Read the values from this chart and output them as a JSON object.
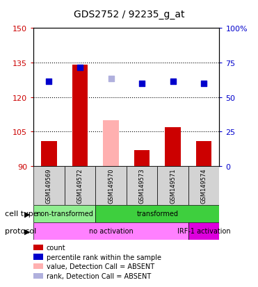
{
  "title": "GDS2752 / 92235_g_at",
  "samples": [
    "GSM149569",
    "GSM149572",
    "GSM149570",
    "GSM149573",
    "GSM149571",
    "GSM149574"
  ],
  "bar_values": [
    101,
    134,
    null,
    97,
    107,
    101
  ],
  "absent_bar_values": [
    null,
    null,
    110,
    null,
    null,
    null
  ],
  "absent_bar_color": "#ffb0b0",
  "dot_values": [
    127,
    133,
    null,
    126,
    127,
    126
  ],
  "absent_dot_values": [
    null,
    null,
    128,
    null,
    null,
    null
  ],
  "dot_color": "#0000cc",
  "absent_dot_color": "#b0b0dd",
  "bar_color": "#cc0000",
  "ylim_left": [
    90,
    150
  ],
  "ylim_right": [
    0,
    100
  ],
  "yticks_left": [
    90,
    105,
    120,
    135,
    150
  ],
  "yticks_right": [
    0,
    25,
    50,
    75,
    100
  ],
  "yticks_right_labels": [
    "0",
    "25",
    "50",
    "75",
    "100%"
  ],
  "cell_type_labels": [
    {
      "label": "non-transformed",
      "start": 0,
      "end": 2,
      "color": "#90ee90"
    },
    {
      "label": "transformed",
      "start": 2,
      "end": 6,
      "color": "#3ecf3e"
    }
  ],
  "protocol_labels": [
    {
      "label": "no activation",
      "start": 0,
      "end": 5,
      "color": "#ff80ff"
    },
    {
      "label": "IRF-1 activation",
      "start": 5,
      "end": 6,
      "color": "#dd00dd"
    }
  ],
  "cell_type_row_label": "cell type",
  "protocol_row_label": "protocol",
  "legend_items": [
    {
      "color": "#cc0000",
      "label": "count"
    },
    {
      "color": "#0000cc",
      "label": "percentile rank within the sample"
    },
    {
      "color": "#ffb0b0",
      "label": "value, Detection Call = ABSENT"
    },
    {
      "color": "#b0b0dd",
      "label": "rank, Detection Call = ABSENT"
    }
  ],
  "background_color": "#ffffff",
  "plot_bg": "#ffffff",
  "spine_color": "#000000",
  "left_label_color": "#cc0000",
  "right_label_color": "#0000cc",
  "sample_bg_color": "#d3d3d3"
}
